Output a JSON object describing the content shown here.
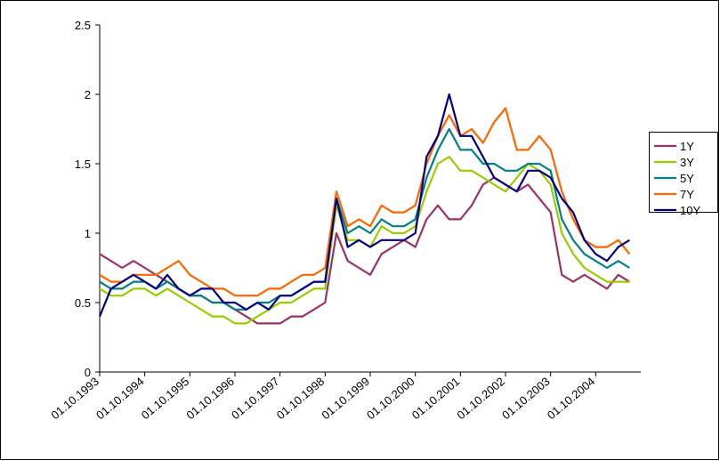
{
  "chart_data": {
    "type": "line",
    "categories": [
      "01.10.1993",
      null,
      null,
      null,
      "01.10.1994",
      null,
      null,
      null,
      "01.10.1995",
      null,
      null,
      null,
      "01.10.1996",
      null,
      null,
      null,
      "01.10.1997",
      null,
      null,
      null,
      "01.10.1998",
      null,
      null,
      null,
      "01.10.1999",
      null,
      null,
      null,
      "01.10.2000",
      null,
      null,
      null,
      "01.10.2001",
      null,
      null,
      null,
      "01.10.2002",
      null,
      null,
      null,
      "01.10.2003",
      null,
      null,
      null,
      "01.10.2004",
      null,
      null,
      null
    ],
    "series": [
      {
        "name": "1Y",
        "color": "#993366",
        "values": [
          0.85,
          0.8,
          0.75,
          0.8,
          0.75,
          0.7,
          0.65,
          0.6,
          0.55,
          0.55,
          0.5,
          0.5,
          0.45,
          0.4,
          0.35,
          0.35,
          0.35,
          0.4,
          0.4,
          0.45,
          0.5,
          1.0,
          0.8,
          0.75,
          0.7,
          0.85,
          0.9,
          0.95,
          0.9,
          1.1,
          1.2,
          1.1,
          1.1,
          1.2,
          1.35,
          1.4,
          1.35,
          1.3,
          1.35,
          1.25,
          1.15,
          0.7,
          0.65,
          0.7,
          0.65,
          0.6,
          0.7,
          0.65
        ]
      },
      {
        "name": "3Y",
        "color": "#99cc00",
        "values": [
          0.6,
          0.55,
          0.55,
          0.6,
          0.6,
          0.55,
          0.6,
          0.55,
          0.5,
          0.45,
          0.4,
          0.4,
          0.35,
          0.35,
          0.4,
          0.45,
          0.5,
          0.5,
          0.55,
          0.6,
          0.6,
          1.2,
          0.95,
          0.95,
          0.9,
          1.05,
          1.0,
          1.0,
          1.05,
          1.3,
          1.5,
          1.55,
          1.45,
          1.45,
          1.4,
          1.35,
          1.3,
          1.4,
          1.5,
          1.45,
          1.35,
          1.0,
          0.85,
          0.75,
          0.7,
          0.65,
          0.65,
          0.65
        ]
      },
      {
        "name": "5Y",
        "color": "#008080",
        "values": [
          0.65,
          0.6,
          0.6,
          0.65,
          0.65,
          0.6,
          0.65,
          0.6,
          0.55,
          0.55,
          0.5,
          0.5,
          0.45,
          0.45,
          0.5,
          0.5,
          0.55,
          0.55,
          0.6,
          0.65,
          0.65,
          1.25,
          1.0,
          1.05,
          1.0,
          1.1,
          1.05,
          1.05,
          1.1,
          1.4,
          1.6,
          1.75,
          1.6,
          1.6,
          1.5,
          1.5,
          1.45,
          1.45,
          1.5,
          1.5,
          1.45,
          1.1,
          0.95,
          0.85,
          0.8,
          0.75,
          0.8,
          0.75
        ]
      },
      {
        "name": "7Y",
        "color": "#ff6600",
        "values": [
          0.7,
          0.65,
          0.65,
          0.7,
          0.7,
          0.7,
          0.75,
          0.8,
          0.7,
          0.65,
          0.6,
          0.6,
          0.55,
          0.55,
          0.55,
          0.6,
          0.6,
          0.65,
          0.7,
          0.7,
          0.75,
          1.3,
          1.05,
          1.1,
          1.05,
          1.2,
          1.15,
          1.15,
          1.2,
          1.5,
          1.7,
          1.85,
          1.7,
          1.75,
          1.65,
          1.8,
          1.9,
          1.6,
          1.6,
          1.7,
          1.6,
          1.3,
          1.1,
          0.95,
          0.9,
          0.9,
          0.95,
          0.85
        ]
      },
      {
        "name": "10Y",
        "color": "#000080",
        "values": [
          0.4,
          0.6,
          0.65,
          0.7,
          0.65,
          0.6,
          0.7,
          0.6,
          0.55,
          0.6,
          0.6,
          0.5,
          0.5,
          0.45,
          0.5,
          0.45,
          0.55,
          0.55,
          0.6,
          0.65,
          0.65,
          1.25,
          0.9,
          0.95,
          0.9,
          0.95,
          0.95,
          0.95,
          1.0,
          1.55,
          1.7,
          2.0,
          1.7,
          1.7,
          1.55,
          1.4,
          1.35,
          1.3,
          1.45,
          1.45,
          1.4,
          1.25,
          1.15,
          0.95,
          0.85,
          0.8,
          0.9,
          0.95
        ]
      }
    ],
    "ylim": [
      0,
      2.5
    ],
    "yticks": [
      0,
      0.5,
      1,
      1.5,
      2,
      2.5
    ],
    "legend": "right"
  }
}
